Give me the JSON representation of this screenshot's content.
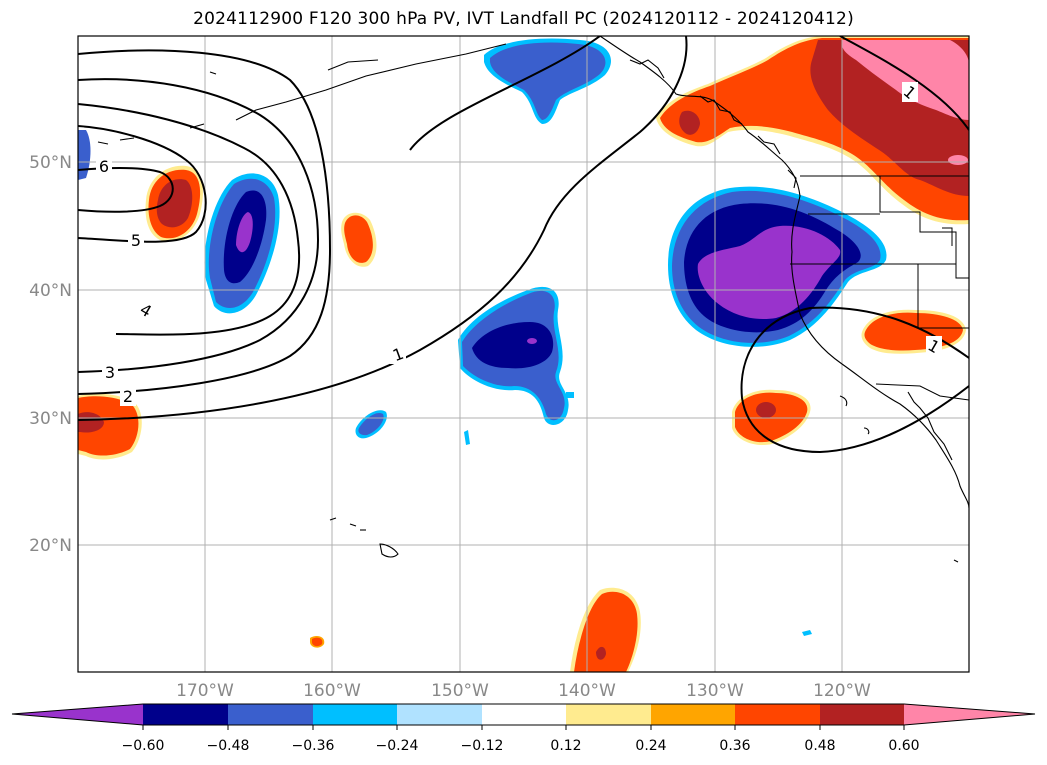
{
  "title": "2024112900 F120 300 hPa PV, IVT Landfall PC (2024120112 - 2024120412)",
  "colors": {
    "levels": [
      "#9933cc",
      "#00008b",
      "#3a5fcd",
      "#00bfff",
      "#b0e2ff",
      "#ffffff",
      "#ffeb8f",
      "#ffa500",
      "#ff4500",
      "#b22222",
      "#ff85a8"
    ],
    "coast": "#000000",
    "grid": "#b0b0b0",
    "contour": "#000000"
  },
  "map": {
    "lat_labels": [
      "50°N",
      "40°N",
      "30°N",
      "20°N"
    ],
    "lon_labels": [
      "170°W",
      "160°W",
      "150°W",
      "140°W",
      "130°W",
      "120°W"
    ]
  },
  "contours": {
    "labels": [
      "6",
      "5",
      "4",
      "3",
      "2",
      "1",
      "1",
      "1"
    ]
  },
  "colorbar": {
    "ticks": [
      "−0.60",
      "−0.48",
      "−0.36",
      "−0.24",
      "−0.12",
      "0.12",
      "0.24",
      "0.36",
      "0.48",
      "0.60"
    ]
  }
}
